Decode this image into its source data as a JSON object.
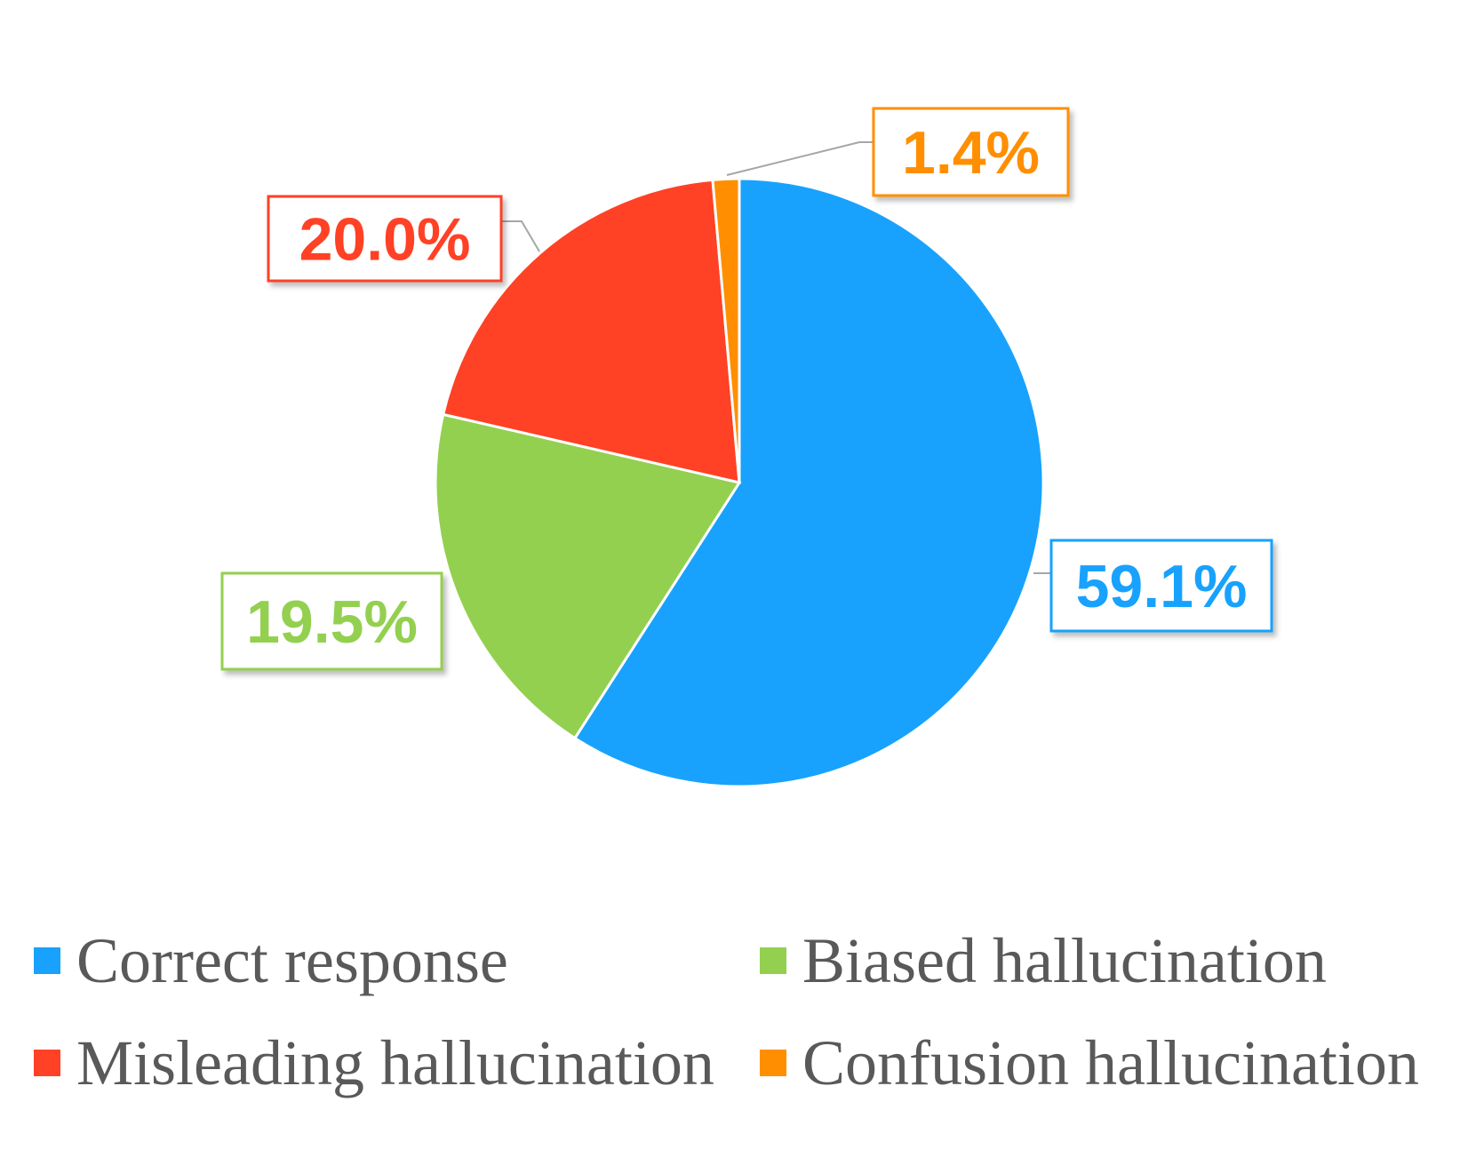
{
  "chart_data": {
    "type": "pie",
    "title": "",
    "slices": [
      {
        "name": "Correct response",
        "value": 59.1,
        "label": "59.1%",
        "color": "#18a2fd"
      },
      {
        "name": "Biased hallucination",
        "value": 19.5,
        "label": "19.5%",
        "color": "#93d050"
      },
      {
        "name": "Misleading hallucination",
        "value": 20.0,
        "label": "20.0%",
        "color": "#ff4125"
      },
      {
        "name": "Confusion hallucination",
        "value": 1.4,
        "label": "1.4%",
        "color": "#ff8f00"
      }
    ],
    "start_angle": "12 o'clock",
    "direction": "clockwise, Correct response first; remaining slices counter-clockwise order shown: Confusion, Misleading, Biased",
    "legend_position": "bottom"
  }
}
